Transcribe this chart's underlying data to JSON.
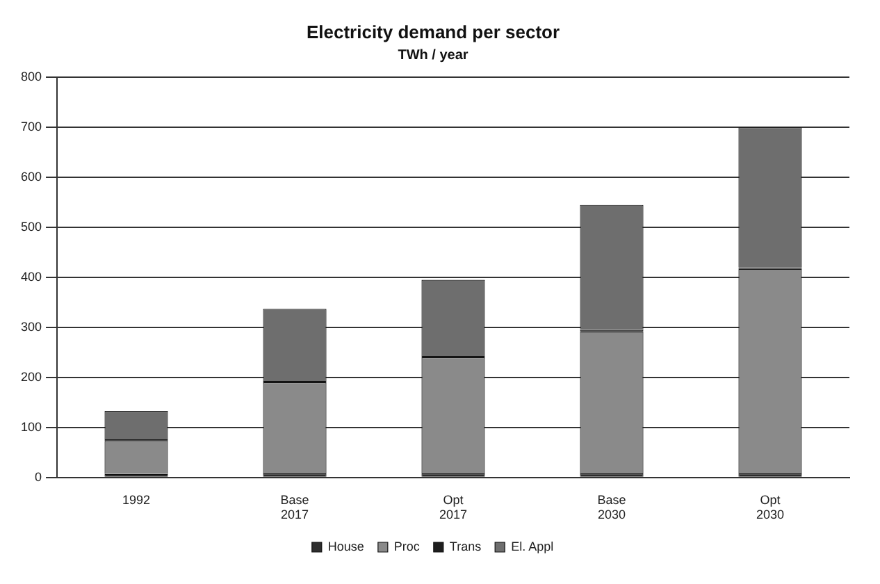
{
  "chart_data": {
    "type": "bar",
    "title": "Electricity demand per sector",
    "subtitle": "TWh / year",
    "categories": [
      "1992",
      "Base 2017",
      "Opt 2017",
      "Base 2030",
      "Opt 2030"
    ],
    "stacked": true,
    "series": [
      {
        "name": "House",
        "color": "#2e2e2e",
        "values": [
          7,
          8,
          8,
          8,
          8
        ]
      },
      {
        "name": "Proc",
        "color": "#8a8a8a",
        "values": [
          66,
          182,
          232,
          284,
          409
        ]
      },
      {
        "name": "Trans",
        "color": "#1e1e1e",
        "values": [
          3,
          3,
          3,
          3,
          3
        ]
      },
      {
        "name": "El. Appl",
        "color": "#6e6e6e",
        "values": [
          57,
          144,
          152,
          250,
          280
        ]
      }
    ],
    "ylim": [
      0,
      800
    ],
    "yticks": [
      0,
      100,
      200,
      300,
      400,
      500,
      600,
      700,
      800
    ],
    "grid": "y",
    "legend": "bottom"
  }
}
